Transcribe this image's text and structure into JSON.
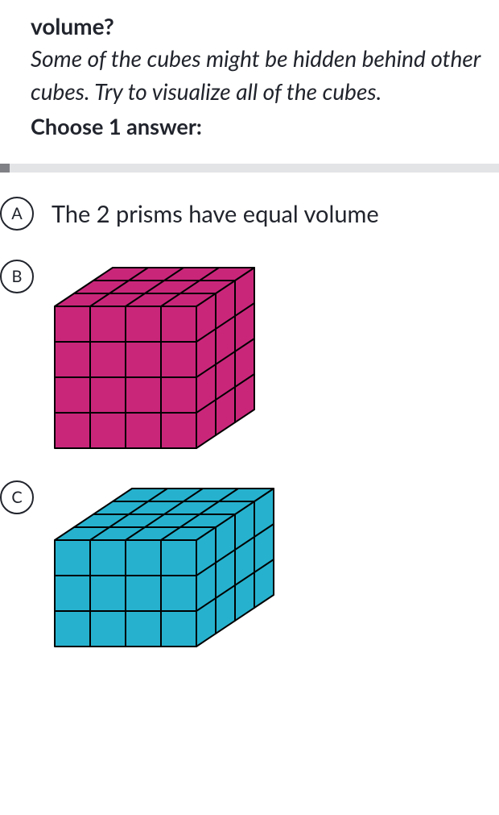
{
  "question": {
    "title_fragment": "volume?",
    "hint": "Some of the cubes might be hidden behind other cubes. Try to visualize all of the cubes.",
    "instruction": "Choose 1 answer:"
  },
  "progress": {
    "bg_color": "#e3e4e6",
    "fill_color": "#808186",
    "fill_percent": 2
  },
  "answers": {
    "a": {
      "letter": "A",
      "text": "The 2 prisms have equal volume"
    },
    "b": {
      "letter": "B"
    },
    "c": {
      "letter": "C"
    }
  },
  "prism_b": {
    "type": "3d-cube-prism",
    "dims": {
      "width": 4,
      "height": 4,
      "depth": 3
    },
    "unit": 44,
    "depth_dx": 24,
    "depth_dy": -16,
    "colors": {
      "front_fill": "#c9267a",
      "right_fill": "#c9267a",
      "top_fill": "#c9267a",
      "stroke": "#000000",
      "stroke_width": 2
    }
  },
  "prism_c": {
    "type": "3d-cube-prism",
    "dims": {
      "width": 4,
      "height": 3,
      "depth": 4
    },
    "unit": 44,
    "depth_dx": 24,
    "depth_dy": -16,
    "colors": {
      "front_fill": "#26b2ce",
      "right_fill": "#26b2ce",
      "top_fill": "#26b2ce",
      "stroke": "#000000",
      "stroke_width": 2
    }
  }
}
